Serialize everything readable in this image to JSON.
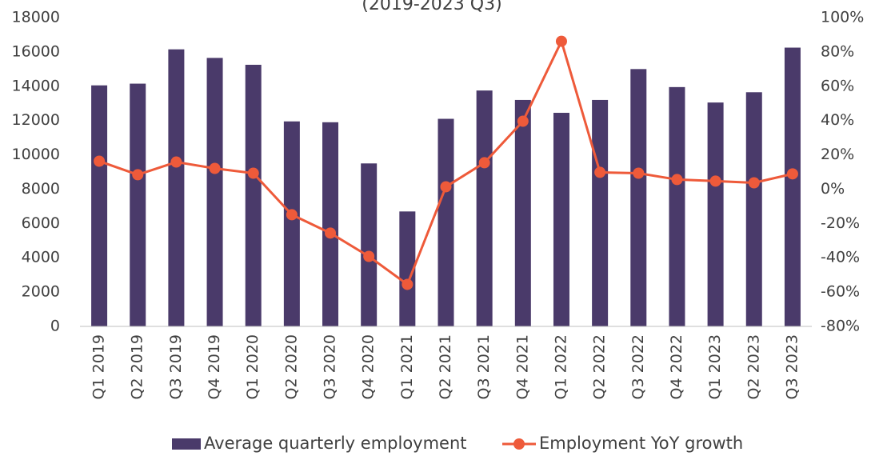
{
  "chart_data": {
    "type": "bar_line",
    "title": "(2019-2023 Q3)",
    "categories": [
      "Q1 2019",
      "Q2 2019",
      "Q3 2019",
      "Q4 2019",
      "Q1 2020",
      "Q2 2020",
      "Q3 2020",
      "Q4 2020",
      "Q1 2021",
      "Q2 2021",
      "Q3 2021",
      "Q4 2021",
      "Q1 2022",
      "Q2 2022",
      "Q3 2022",
      "Q4 2022",
      "Q1 2023",
      "Q2 2023",
      "Q3 2023"
    ],
    "series": [
      {
        "name": "Average quarterly employment",
        "type": "bar",
        "color": "#4a3a6a",
        "values": [
          14050,
          14150,
          16150,
          15650,
          15250,
          11950,
          11900,
          9500,
          6700,
          12100,
          13750,
          13200,
          12450,
          13200,
          15000,
          13950,
          13050,
          13650,
          16250
        ]
      },
      {
        "name": "Employment YoY growth",
        "type": "line",
        "axis": "y2",
        "color": "#ee5a3a",
        "values": [
          16.3,
          8.4,
          15.8,
          12.1,
          9.3,
          -14.9,
          -25.6,
          -39.2,
          -55.5,
          1.4,
          15.4,
          39.6,
          86.2,
          9.8,
          9.3,
          5.6,
          4.7,
          3.7,
          8.9
        ]
      }
    ],
    "ylim": [
      0,
      18000
    ],
    "yticks": [
      0,
      2000,
      4000,
      6000,
      8000,
      10000,
      12000,
      14000,
      16000,
      18000
    ],
    "y2lim": [
      -80,
      100
    ],
    "y2ticks": [
      {
        "value": -80,
        "label": "-80%"
      },
      {
        "value": -60,
        "label": "-60%"
      },
      {
        "value": -40,
        "label": "-40%"
      },
      {
        "value": -20,
        "label": "-20%"
      },
      {
        "value": 0,
        "label": "0%"
      },
      {
        "value": 20,
        "label": "20%"
      },
      {
        "value": 40,
        "label": "40%"
      },
      {
        "value": 60,
        "label": "60%"
      },
      {
        "value": 80,
        "label": "80%"
      },
      {
        "value": 100,
        "label": "100%"
      }
    ],
    "legend": "bottom",
    "grid": false
  }
}
